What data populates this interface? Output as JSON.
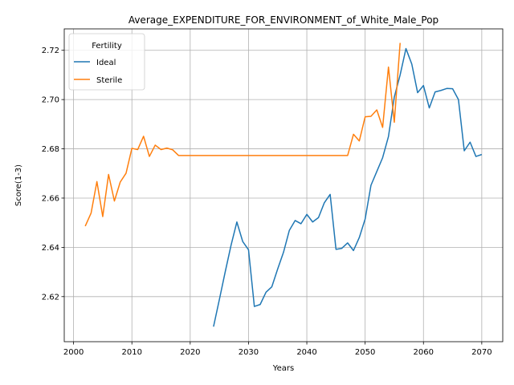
{
  "chart_data": {
    "type": "line",
    "title": "Average_EXPENDITURE_FOR_ENVIRONMENT_of_White_Male_Pop",
    "xlabel": "Years",
    "ylabel": "Score(1-3)",
    "xlim": [
      1998.4,
      2073.6
    ],
    "ylim": [
      2.6017,
      2.7287
    ],
    "x_ticks": [
      2000,
      2010,
      2020,
      2030,
      2040,
      2050,
      2060,
      2070
    ],
    "y_ticks": [
      2.62,
      2.64,
      2.66,
      2.68,
      2.7,
      2.72
    ],
    "x_tick_labels": [
      "2000",
      "2010",
      "2020",
      "2030",
      "2040",
      "2050",
      "2060",
      "2070"
    ],
    "y_tick_labels": [
      "2.62",
      "2.64",
      "2.66",
      "2.68",
      "2.70",
      "2.72"
    ],
    "grid": true,
    "legend": {
      "title": "Fertility",
      "placement": "top-left"
    },
    "series": [
      {
        "name": "Ideal",
        "color": "#1f77b4",
        "x": [
          2024,
          2025,
          2026,
          2027,
          2028,
          2029,
          2030,
          2031,
          2032,
          2033,
          2034,
          2035,
          2036,
          2037,
          2038,
          2039,
          2040,
          2041,
          2042,
          2043,
          2044,
          2045,
          2046,
          2047,
          2048,
          2049,
          2050,
          2051,
          2052,
          2053,
          2054,
          2055,
          2056,
          2057,
          2058,
          2059,
          2060,
          2061,
          2062,
          2063,
          2064,
          2065,
          2066,
          2067,
          2068,
          2069,
          2070
        ],
        "values": [
          2.6078,
          2.6188,
          2.63,
          2.6408,
          2.6503,
          2.6424,
          2.639,
          2.616,
          2.6168,
          2.6218,
          2.624,
          2.6312,
          2.638,
          2.6469,
          2.6509,
          2.6496,
          2.6534,
          2.6503,
          2.6521,
          2.6581,
          2.6615,
          2.6392,
          2.6396,
          2.6418,
          2.6387,
          2.644,
          2.6515,
          2.6652,
          2.6708,
          2.6764,
          2.685,
          2.701,
          2.71,
          2.7207,
          2.7144,
          2.7028,
          2.7057,
          2.6966,
          2.7031,
          2.7037,
          2.7045,
          2.7044,
          2.7,
          2.6792,
          2.6827,
          2.6769,
          2.6777
        ]
      },
      {
        "name": "Sterile",
        "color": "#ff7f0e",
        "x": [
          2002,
          2003,
          2004,
          2005,
          2006,
          2007,
          2008,
          2009,
          2010,
          2011,
          2012,
          2013,
          2014,
          2015,
          2016,
          2017,
          2018,
          2019,
          2020,
          2021,
          2022,
          2023,
          2024,
          2025,
          2026,
          2027,
          2028,
          2029,
          2030,
          2031,
          2032,
          2033,
          2034,
          2035,
          2036,
          2037,
          2038,
          2039,
          2040,
          2041,
          2042,
          2043,
          2044,
          2045,
          2046,
          2047,
          2048,
          2049,
          2050,
          2051,
          2052,
          2053,
          2054,
          2055,
          2056
        ],
        "values": [
          2.6486,
          2.6539,
          2.6667,
          2.6525,
          2.6696,
          2.6588,
          2.6665,
          2.6701,
          2.6802,
          2.6797,
          2.6851,
          2.6769,
          2.6815,
          2.6797,
          2.6803,
          2.6796,
          2.6773,
          2.6773,
          2.6773,
          2.6773,
          2.6773,
          2.6773,
          2.6773,
          2.6773,
          2.6773,
          2.6773,
          2.6773,
          2.6773,
          2.6773,
          2.6773,
          2.6773,
          2.6773,
          2.6773,
          2.6773,
          2.6773,
          2.6773,
          2.6773,
          2.6773,
          2.6773,
          2.6773,
          2.6773,
          2.6773,
          2.6773,
          2.6773,
          2.6773,
          2.6773,
          2.6859,
          2.6832,
          2.693,
          2.6932,
          2.6958,
          2.6887,
          2.7132,
          2.6908,
          2.723
        ]
      }
    ]
  }
}
